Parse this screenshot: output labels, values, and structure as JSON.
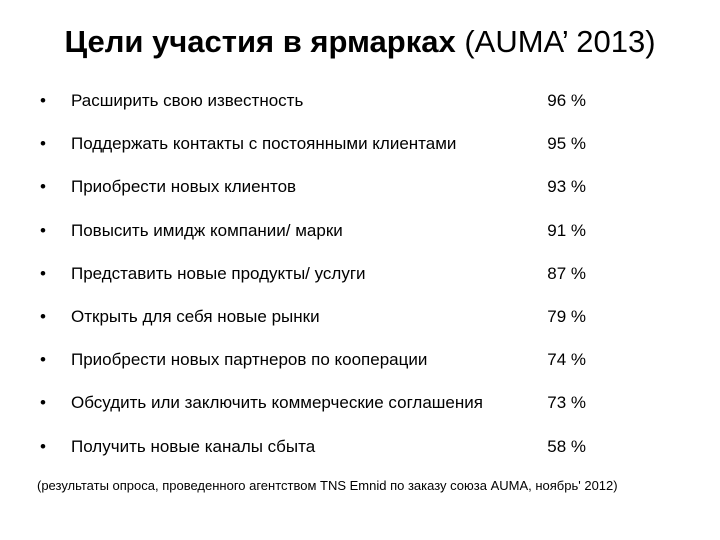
{
  "title": {
    "bold": "Цели участия в ярмарках",
    "normal": " (AUMA’ 2013)"
  },
  "bullet": "•",
  "items": [
    {
      "label": "Расширить свою известность",
      "value": "96 %"
    },
    {
      "label": "Поддержать контакты с постоянными клиентами",
      "value": "95 %"
    },
    {
      "label": "Приобрести новых клиентов",
      "value": "93 %"
    },
    {
      "label": "Повысить имидж компании/  марки",
      "value": "91 %"
    },
    {
      "label": "Представить новые продукты/ услуги",
      "value": "87 %"
    },
    {
      "label": "Открыть для себя новые рынки",
      "value": "79 %"
    },
    {
      "label": "Приобрести новых партнеров по кооперации",
      "value": "74 %"
    },
    {
      "label": "Обсудить или заключить коммерческие соглашения",
      "value": "73 %"
    },
    {
      "label": "Получить новые каналы сбыта",
      "value": "58 %"
    }
  ],
  "note": "(результаты опроса, проведенного агентством TNS Emnid по заказу союза AUMA, ноябрь' 2012)"
}
